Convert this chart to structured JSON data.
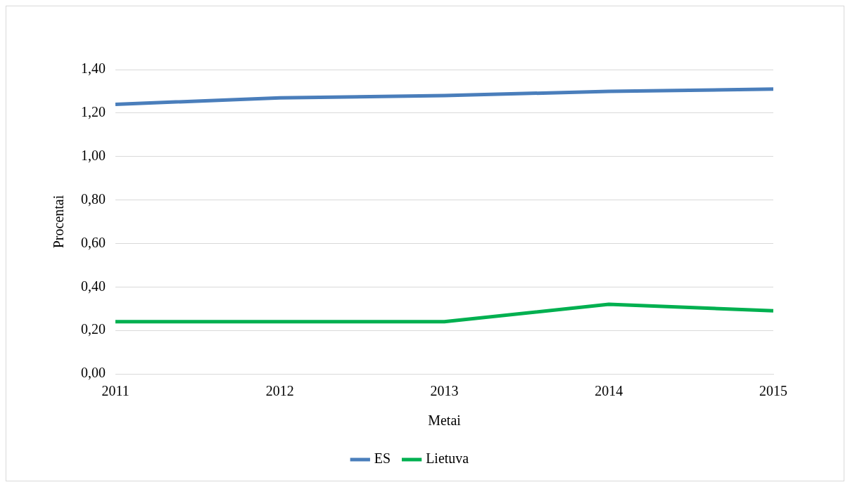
{
  "chart_data": {
    "type": "line",
    "xlabel": "Metai",
    "ylabel": "Procentai",
    "categories": [
      "2011",
      "2012",
      "2013",
      "2014",
      "2015"
    ],
    "series": [
      {
        "name": "ES",
        "color": "#4a7ebb",
        "values": [
          1.24,
          1.27,
          1.28,
          1.3,
          1.31
        ]
      },
      {
        "name": "Lietuva",
        "color": "#00b050",
        "values": [
          0.24,
          0.24,
          0.24,
          0.32,
          0.29
        ]
      }
    ],
    "ylim": [
      0,
      1.4
    ],
    "yticks": [
      {
        "value": 0,
        "label": "0,00"
      },
      {
        "value": 0.2,
        "label": "0,20"
      },
      {
        "value": 0.4,
        "label": "0,40"
      },
      {
        "value": 0.6,
        "label": "0,60"
      },
      {
        "value": 0.8,
        "label": "0,80"
      },
      {
        "value": 1.0,
        "label": "1,00"
      },
      {
        "value": 1.2,
        "label": "1,20"
      },
      {
        "value": 1.4,
        "label": "1,40"
      }
    ],
    "grid": "y",
    "legend": "bottom",
    "marker": "none",
    "line_style": "solid"
  }
}
